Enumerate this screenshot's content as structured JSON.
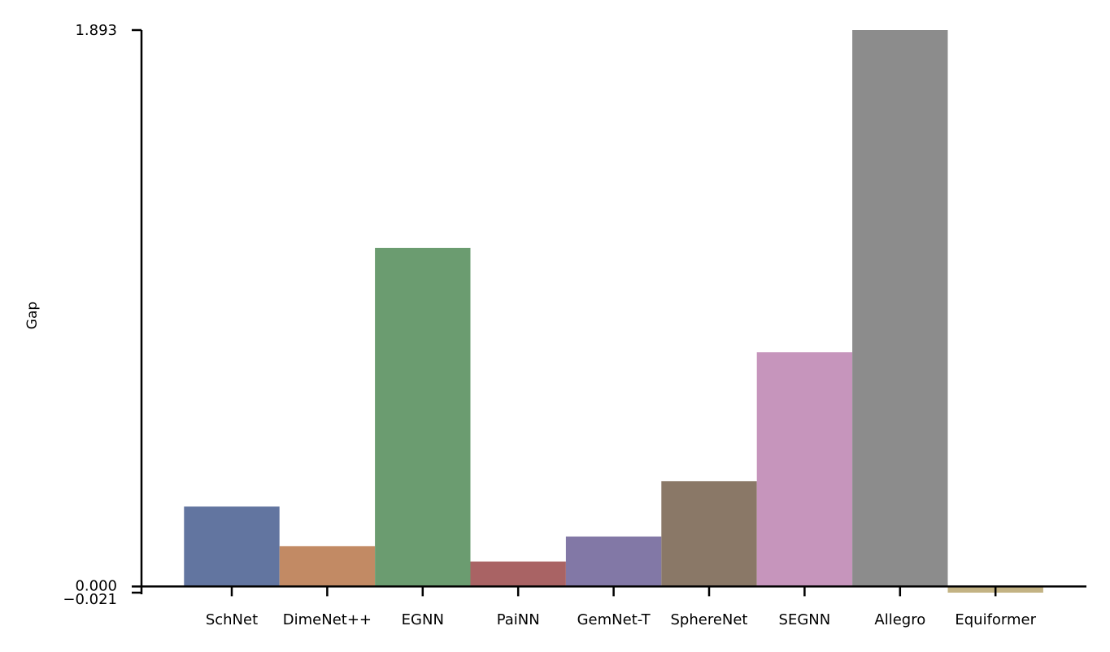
{
  "chart_data": {
    "type": "bar",
    "title": "",
    "xlabel": "",
    "ylabel": "Gap",
    "categories": [
      "SchNet",
      "DimeNet++",
      "EGNN",
      "PaiNN",
      "GemNet-T",
      "SphereNet",
      "SEGNN",
      "Allegro",
      "Equiformer"
    ],
    "values": [
      0.272,
      0.137,
      1.152,
      0.085,
      0.17,
      0.358,
      0.797,
      1.893,
      -0.021
    ],
    "colors": [
      "#6275a0",
      "#c28a64",
      "#6b9c70",
      "#a96364",
      "#8278a6",
      "#8a7867",
      "#c695bc",
      "#8c8c8c",
      "#c3b384"
    ],
    "yticks": [
      "-0.021",
      "0.000",
      "1.893"
    ],
    "ylim": [
      -0.021,
      1.893
    ],
    "grid": false,
    "legend": "none"
  }
}
